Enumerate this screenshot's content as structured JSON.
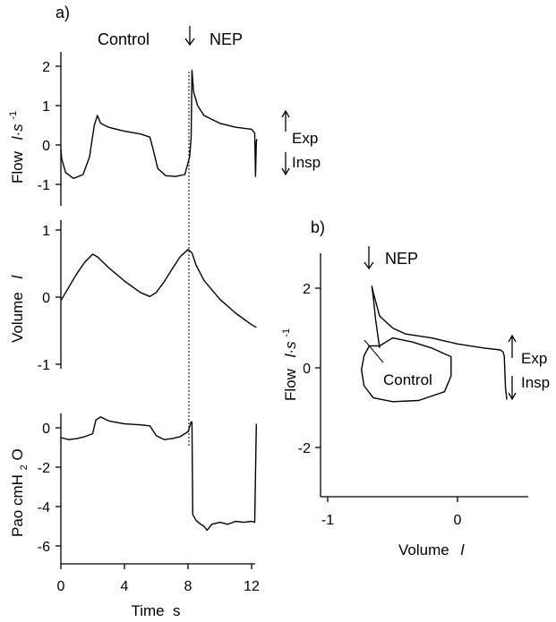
{
  "chart_data": [
    {
      "type": "line",
      "panel_label": "a)",
      "annotations": {
        "control": "Control",
        "nep": "NEP",
        "exp": "Exp",
        "insp": "Insp"
      },
      "xlabel": "Time  s",
      "x_ticks": [
        "0",
        "4",
        "8",
        "12"
      ],
      "xlim": [
        0,
        12.5
      ],
      "nep_time": 8.25,
      "subplots": [
        {
          "name": "flow",
          "ylabel_main": "Flow",
          "ylabel_unit": "l·s",
          "ylabel_sup": "-1",
          "ylim": [
            -1.2,
            2.2
          ],
          "y_ticks": [
            "2",
            "1",
            "0",
            "-1"
          ],
          "series": [
            {
              "x": [
                0.0,
                0.05,
                0.3,
                0.8,
                1.4,
                1.8,
                2.1,
                2.3,
                2.5,
                3.0,
                4.0,
                5.0,
                5.6,
                5.8,
                6.1,
                6.6,
                7.2,
                7.8,
                8.1,
                8.2,
                8.25,
                8.35,
                8.6,
                9.0,
                10.0,
                11.0,
                12.0,
                12.2,
                12.25,
                12.3,
                12.35
              ],
              "y": [
                -0.1,
                -0.35,
                -0.7,
                -0.85,
                -0.75,
                -0.3,
                0.5,
                0.75,
                0.55,
                0.45,
                0.35,
                0.28,
                0.2,
                -0.1,
                -0.6,
                -0.78,
                -0.8,
                -0.75,
                -0.3,
                0.2,
                1.9,
                1.35,
                1.0,
                0.75,
                0.55,
                0.45,
                0.4,
                0.3,
                -0.8,
                0.1,
                0.15
              ]
            }
          ]
        },
        {
          "name": "volume",
          "ylabel_main": "Volume",
          "ylabel_unit": "l",
          "ylim": [
            -1.1,
            1.1
          ],
          "y_ticks": [
            "1",
            "0",
            "-1"
          ],
          "series": [
            {
              "x": [
                0.0,
                0.5,
                1.0,
                1.5,
                2.0,
                2.3,
                3.0,
                4.0,
                5.0,
                5.6,
                6.0,
                6.5,
                7.0,
                7.5,
                8.0,
                8.25,
                8.5,
                9.0,
                10.0,
                11.0,
                12.0,
                12.3
              ],
              "y": [
                -0.05,
                0.15,
                0.35,
                0.52,
                0.64,
                0.6,
                0.44,
                0.24,
                0.07,
                0.01,
                0.07,
                0.23,
                0.42,
                0.6,
                0.71,
                0.66,
                0.48,
                0.25,
                -0.03,
                -0.24,
                -0.41,
                -0.45
              ]
            }
          ]
        },
        {
          "name": "pao",
          "ylabel_main": "Pao  cmH",
          "ylabel_sub": "2",
          "ylabel_tail": "O",
          "ylim": [
            -6.5,
            0.8
          ],
          "y_ticks": [
            "0",
            "-2",
            "-4",
            "-6"
          ],
          "series": [
            {
              "x": [
                0.0,
                0.5,
                1.0,
                1.5,
                2.0,
                2.2,
                2.5,
                3.0,
                4.0,
                5.0,
                5.6,
                6.0,
                6.5,
                7.0,
                7.5,
                8.0,
                8.2,
                8.25,
                8.3,
                8.5,
                8.8,
                9.0,
                9.2,
                9.5,
                10.0,
                10.5,
                11.0,
                11.5,
                12.0,
                12.2,
                12.3
              ],
              "y": [
                -0.5,
                -0.6,
                -0.55,
                -0.45,
                -0.3,
                0.4,
                0.55,
                0.35,
                0.2,
                0.15,
                0.1,
                -0.4,
                -0.6,
                -0.55,
                -0.45,
                -0.2,
                0.3,
                0.3,
                -4.4,
                -4.7,
                -4.9,
                -5.0,
                -5.2,
                -4.9,
                -4.8,
                -4.9,
                -4.75,
                -4.8,
                -4.75,
                -4.8,
                0.2
              ]
            }
          ]
        }
      ]
    },
    {
      "type": "line",
      "panel_label": "b)",
      "annotations": {
        "control": "Control",
        "nep": "NEP",
        "exp": "Exp",
        "insp": "Insp"
      },
      "xlabel": "Volume",
      "xlabel_unit": "l",
      "ylabel_main": "Flow",
      "ylabel_unit": "l·s",
      "ylabel_sup": "-1",
      "xlim": [
        -1.15,
        0.65
      ],
      "ylim": [
        -3.1,
        2.9
      ],
      "x_ticks": [
        "-1",
        "0"
      ],
      "y_ticks": [
        "2",
        "0",
        "-2"
      ],
      "series": [
        {
          "name": "NEP",
          "x": [
            -0.6,
            -0.63,
            -0.65,
            -0.66,
            -0.65,
            -0.6,
            -0.5,
            -0.4,
            -0.2,
            0.0,
            0.2,
            0.33,
            0.35,
            0.36,
            0.37,
            0.38
          ],
          "y": [
            0.5,
            1.2,
            1.8,
            2.05,
            1.9,
            1.3,
            1.0,
            0.85,
            0.75,
            0.6,
            0.5,
            0.45,
            0.4,
            0.3,
            -0.5,
            -0.8
          ]
        },
        {
          "name": "Control",
          "x": [
            -0.6,
            -0.5,
            -0.35,
            -0.2,
            -0.1,
            -0.05,
            -0.05,
            -0.1,
            -0.3,
            -0.5,
            -0.65,
            -0.72,
            -0.74,
            -0.72,
            -0.68,
            -0.6
          ],
          "y": [
            0.55,
            0.75,
            0.65,
            0.5,
            0.35,
            0.28,
            -0.2,
            -0.6,
            -0.82,
            -0.85,
            -0.75,
            -0.45,
            -0.05,
            0.3,
            0.55,
            0.55
          ]
        }
      ]
    }
  ]
}
